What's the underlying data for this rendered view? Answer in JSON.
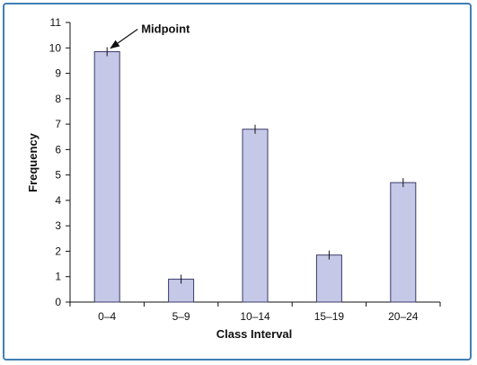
{
  "chart_data": {
    "type": "bar",
    "categories": [
      "0–4",
      "5–9",
      "10–14",
      "15–19",
      "20–24"
    ],
    "values": [
      9.85,
      0.9,
      6.8,
      1.85,
      4.7
    ],
    "xlabel": "Class Interval",
    "ylabel": "Frequency",
    "ylim": [
      0,
      11
    ],
    "yticks": [
      0,
      1,
      2,
      3,
      4,
      5,
      6,
      7,
      8,
      9,
      10,
      11
    ],
    "grid": false,
    "annotation": {
      "text": "Midpoint",
      "target_category": "0–4"
    },
    "colors": {
      "bar_fill": "#c6c8e8",
      "bar_stroke": "#3a3a6a",
      "frame": "#3f7fb6"
    }
  }
}
